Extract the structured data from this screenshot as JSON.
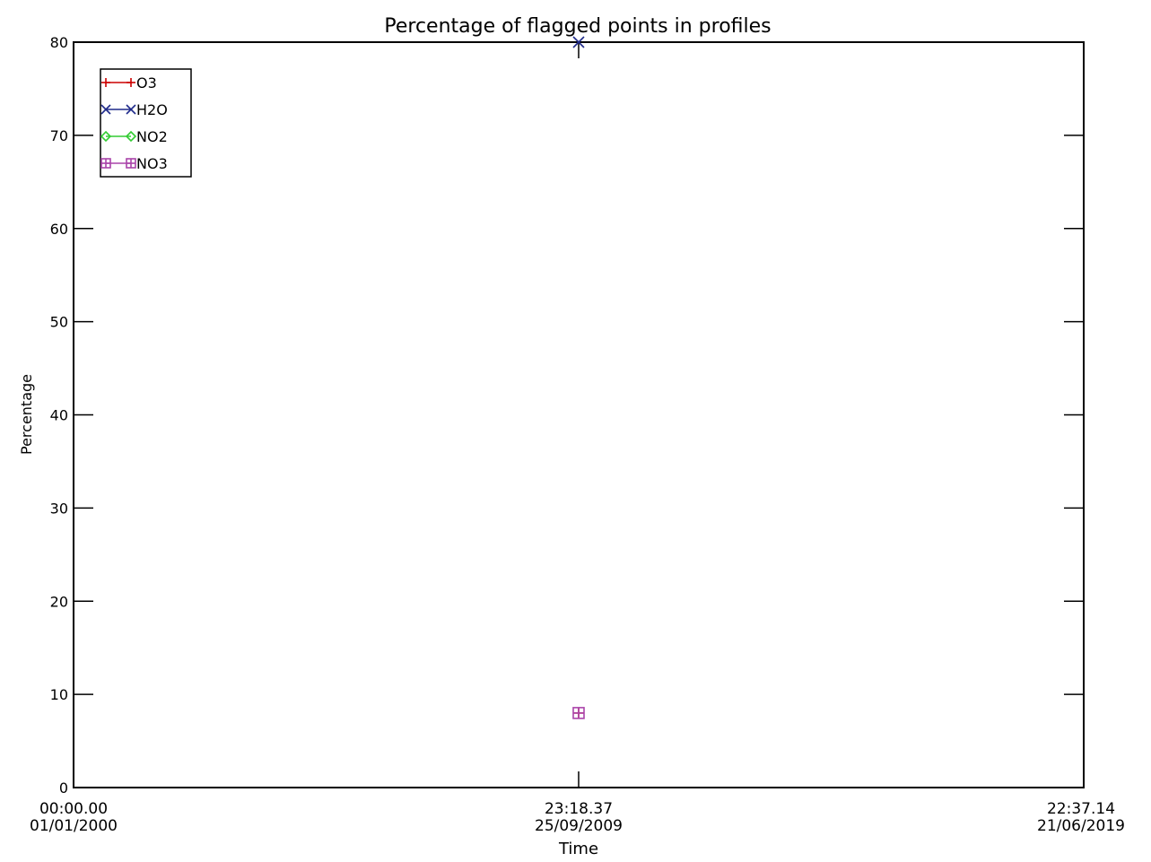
{
  "chart_data": {
    "type": "scatter",
    "title": "Percentage of flagged points in profiles",
    "xlabel": "Time",
    "ylabel": "Percentage",
    "ylim": [
      0,
      80
    ],
    "yticks": [
      0,
      10,
      20,
      30,
      40,
      50,
      60,
      70,
      80
    ],
    "xlim": [
      "00:00.00 01/01/2000",
      "22:37.14 21/06/2019"
    ],
    "xticks": [
      {
        "time": "00:00.00",
        "date": "01/01/2000"
      },
      {
        "time": "23:18.37",
        "date": "25/09/2009"
      },
      {
        "time": "22:37.14",
        "date": "21/06/2019"
      }
    ],
    "grid": false,
    "legend_position": "top-left",
    "series": [
      {
        "name": "O3",
        "color": "#cc0000",
        "marker": "plus",
        "points": [
          {
            "x": "23:18.37 25/09/2009",
            "y": 8
          }
        ]
      },
      {
        "name": "H2O",
        "color": "#1f2a8a",
        "marker": "cross",
        "points": [
          {
            "x": "23:18.37 25/09/2009",
            "y": 80
          }
        ]
      },
      {
        "name": "NO2",
        "color": "#33cc33",
        "marker": "diamond",
        "points": []
      },
      {
        "name": "NO3",
        "color": "#aa44aa",
        "marker": "square-cross",
        "points": [
          {
            "x": "23:18.37 25/09/2009",
            "y": 8
          }
        ]
      }
    ]
  }
}
